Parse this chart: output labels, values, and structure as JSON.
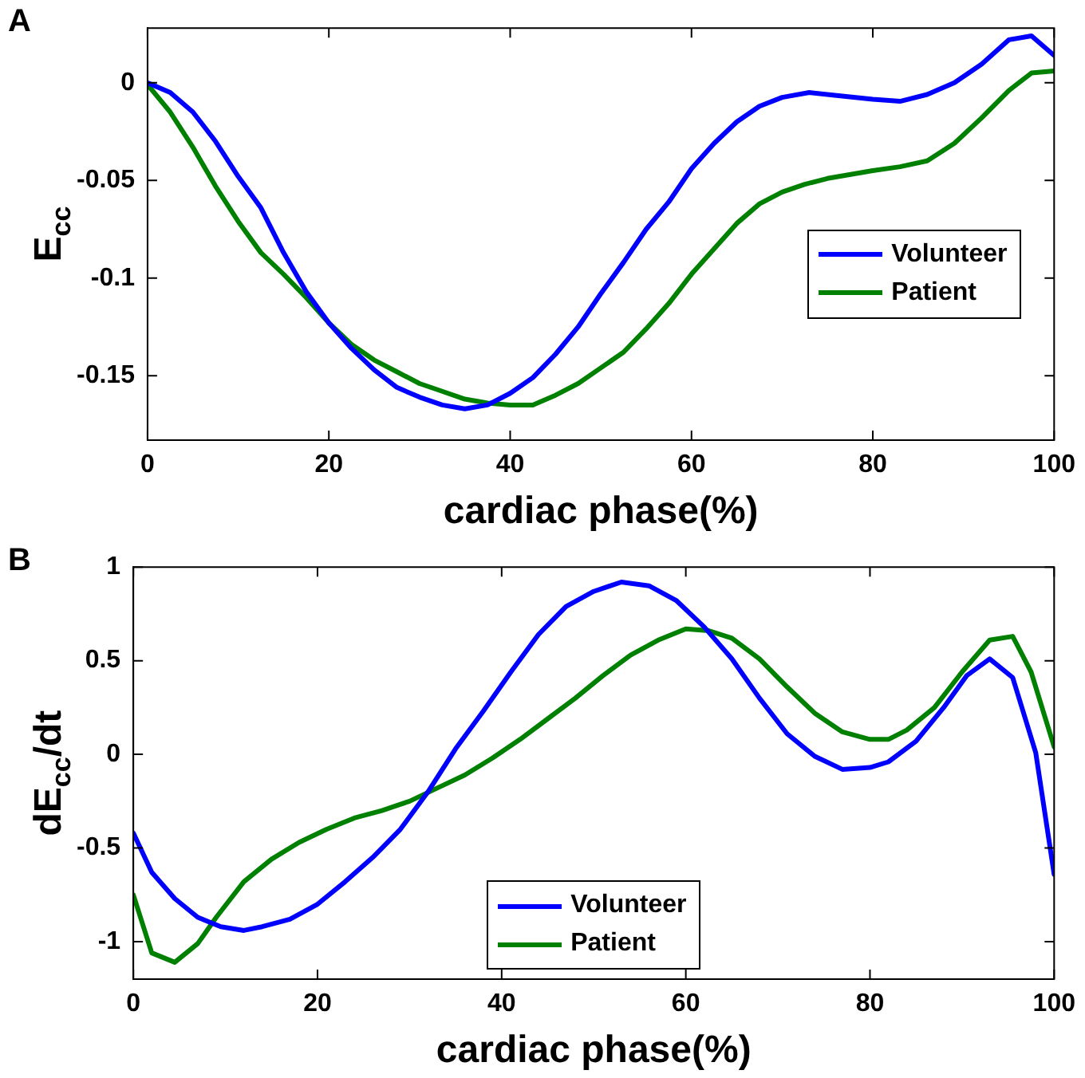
{
  "chart_data": [
    {
      "type": "line",
      "annotations": [
        "A"
      ],
      "xlabel": "cardiac phase(%)",
      "ylabel": "E$_{cc}$",
      "xlim": [
        0,
        100
      ],
      "xticks": [
        0,
        20,
        40,
        60,
        80,
        100
      ],
      "ylim": [
        -0.183,
        0.028
      ],
      "yticks": [
        -0.15,
        -0.1,
        -0.05,
        0
      ],
      "grid": false,
      "legend": "right",
      "marker": "none",
      "line_style": "solid",
      "series": [
        {
          "name": "Volunteer",
          "color": "#0000ff",
          "x": [
            0,
            2.5,
            5,
            7.5,
            10,
            12.5,
            15,
            17.5,
            20,
            22.5,
            25,
            27.5,
            30,
            32.5,
            35,
            37.5,
            40,
            42.5,
            45,
            47.5,
            50,
            52.5,
            55,
            57.5,
            60,
            62.5,
            65,
            67.5,
            70,
            73,
            76,
            80,
            83,
            86,
            89,
            92,
            95,
            97.5,
            100
          ],
          "values": [
            0,
            -0.005,
            -0.015,
            -0.03,
            -0.048,
            -0.064,
            -0.087,
            -0.107,
            -0.123,
            -0.136,
            -0.147,
            -0.156,
            -0.161,
            -0.165,
            -0.167,
            -0.165,
            -0.159,
            -0.151,
            -0.139,
            -0.125,
            -0.108,
            -0.092,
            -0.075,
            -0.061,
            -0.044,
            -0.031,
            -0.02,
            -0.012,
            -0.0075,
            -0.005,
            -0.0065,
            -0.0085,
            -0.0095,
            -0.006,
            0,
            0.0095,
            0.022,
            0.024,
            0.014
          ]
        },
        {
          "name": "Patient",
          "color": "#008000",
          "x": [
            0,
            2.5,
            5,
            7.5,
            10,
            12.5,
            15,
            17.5,
            20,
            22.5,
            25,
            27.5,
            30,
            32.5,
            35,
            37.5,
            40,
            42.5,
            45,
            47.5,
            50,
            52.5,
            55,
            57.5,
            60,
            62.5,
            65,
            67.5,
            70,
            72.5,
            75,
            80,
            83,
            86,
            89,
            92,
            95,
            97.5,
            100
          ],
          "values": [
            -0.001,
            -0.015,
            -0.033,
            -0.053,
            -0.071,
            -0.087,
            -0.098,
            -0.11,
            -0.123,
            -0.134,
            -0.142,
            -0.148,
            -0.154,
            -0.158,
            -0.162,
            -0.164,
            -0.165,
            -0.165,
            -0.16,
            -0.154,
            -0.146,
            -0.138,
            -0.126,
            -0.113,
            -0.098,
            -0.085,
            -0.072,
            -0.062,
            -0.056,
            -0.052,
            -0.049,
            -0.045,
            -0.043,
            -0.04,
            -0.031,
            -0.018,
            -0.004,
            0.005,
            0.006
          ]
        }
      ]
    },
    {
      "type": "line",
      "annotations": [
        "B"
      ],
      "xlabel": "cardiac phase(%)",
      "ylabel": "dE$_{cc}$/dt",
      "xlim": [
        0,
        100
      ],
      "xticks": [
        0,
        20,
        40,
        60,
        80,
        100
      ],
      "ylim": [
        -1.2,
        1
      ],
      "yticks": [
        -1,
        -0.5,
        0,
        0.5,
        1
      ],
      "grid": false,
      "legend": "bottom",
      "marker": "none",
      "line_style": "solid",
      "series": [
        {
          "name": "Volunteer",
          "color": "#0000ff",
          "x": [
            0,
            2,
            4.5,
            7,
            9.5,
            12,
            14,
            17,
            20,
            23,
            26,
            29,
            32,
            35,
            38,
            41,
            44,
            47,
            50,
            53,
            56,
            59,
            62,
            65,
            68,
            71,
            74,
            77,
            80,
            82,
            85,
            88,
            90.5,
            93,
            95.5,
            98,
            100
          ],
          "values": [
            -0.42,
            -0.63,
            -0.77,
            -0.87,
            -0.92,
            -0.94,
            -0.92,
            -0.88,
            -0.8,
            -0.68,
            -0.55,
            -0.4,
            -0.2,
            0.03,
            0.23,
            0.44,
            0.64,
            0.79,
            0.87,
            0.92,
            0.9,
            0.82,
            0.68,
            0.51,
            0.3,
            0.11,
            -0.01,
            -0.08,
            -0.07,
            -0.04,
            0.07,
            0.25,
            0.42,
            0.51,
            0.41,
            0.01,
            -0.64
          ]
        },
        {
          "name": "Patient",
          "color": "#008000",
          "x": [
            0,
            2,
            4.5,
            7,
            9,
            12,
            15,
            18,
            21,
            24,
            27,
            30,
            33,
            36,
            39,
            42,
            45,
            48,
            51,
            54,
            57,
            60,
            62.5,
            65,
            68,
            71,
            74,
            77,
            80,
            82,
            84,
            87,
            90,
            93,
            95.5,
            97.5,
            100
          ],
          "values": [
            -0.75,
            -1.06,
            -1.11,
            -1.01,
            -0.87,
            -0.68,
            -0.56,
            -0.47,
            -0.4,
            -0.34,
            -0.3,
            -0.25,
            -0.18,
            -0.11,
            -0.02,
            0.08,
            0.19,
            0.3,
            0.42,
            0.53,
            0.61,
            0.67,
            0.66,
            0.62,
            0.51,
            0.36,
            0.22,
            0.12,
            0.08,
            0.08,
            0.13,
            0.25,
            0.44,
            0.61,
            0.63,
            0.44,
            0.04
          ]
        }
      ]
    }
  ]
}
